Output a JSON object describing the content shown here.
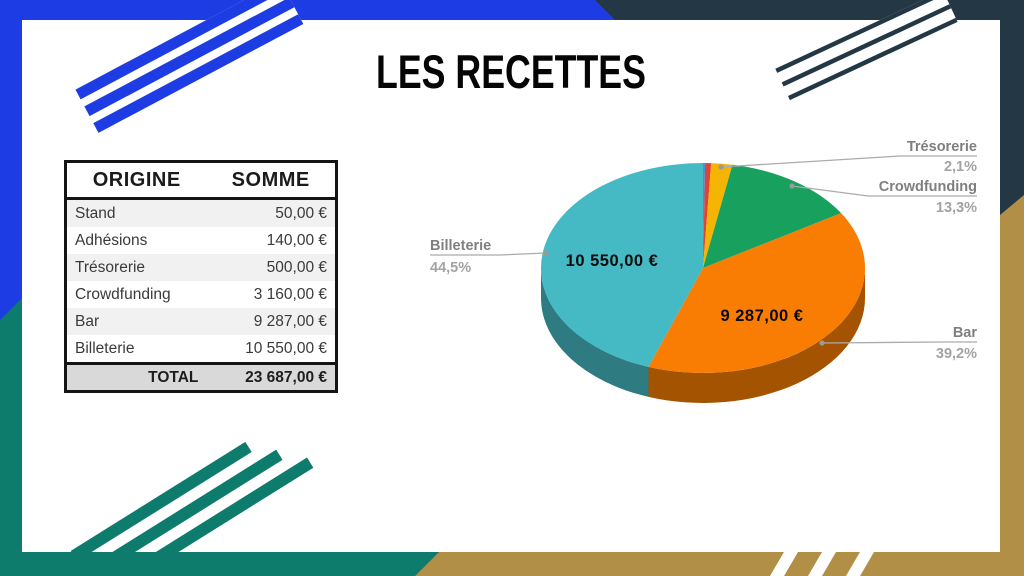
{
  "title": "LES RECETTES",
  "table": {
    "headers": [
      "ORIGINE",
      "SOMME"
    ],
    "rows": [
      {
        "origin": "Stand",
        "amount": "50,00 €"
      },
      {
        "origin": "Adhésions",
        "amount": "140,00 €"
      },
      {
        "origin": "Trésorerie",
        "amount": "500,00 €"
      },
      {
        "origin": "Crowdfunding",
        "amount": "3 160,00 €"
      },
      {
        "origin": "Bar",
        "amount": "9 287,00 €"
      },
      {
        "origin": "Billeterie",
        "amount": "10 550,00 €"
      }
    ],
    "total_label": "TOTAL",
    "total_value": "23 687,00 €"
  },
  "chart_data": {
    "type": "pie",
    "style": "3d",
    "unit": "€",
    "total": 23687,
    "legend_position": "outside-callouts",
    "slices": [
      {
        "label": "Stand",
        "value": 50,
        "percent": 0.2,
        "color": "#4D8FD6"
      },
      {
        "label": "Adhésions",
        "value": 140,
        "percent": 0.6,
        "color": "#DB4437"
      },
      {
        "label": "Trésorerie",
        "value": 500,
        "percent": 2.1,
        "percent_label": "2,1%",
        "color": "#F4B400"
      },
      {
        "label": "Crowdfunding",
        "value": 3160,
        "percent": 13.3,
        "percent_label": "13,3%",
        "color": "#17A05E"
      },
      {
        "label": "Bar",
        "value": 9287,
        "percent": 39.2,
        "percent_label": "39,2%",
        "color": "#F97D02",
        "inside_label": "9 287,00 €"
      },
      {
        "label": "Billeterie",
        "value": 10550,
        "percent": 44.5,
        "percent_label": "44,5%",
        "color": "#45BAC4",
        "inside_label": "10 550,00 €"
      }
    ]
  },
  "colors": {
    "frame_blue": "#1D3CE3",
    "frame_dark": "#243745",
    "frame_teal": "#0D7C6D",
    "frame_gold": "#B28F46",
    "panel_white": "#FFFFFF",
    "callout_name_gray": "#7F7F7F",
    "callout_pct_gray": "#A3A3A3",
    "leader_line_gray": "#ABABAB",
    "inside_label_black": "#0B0B0B"
  }
}
